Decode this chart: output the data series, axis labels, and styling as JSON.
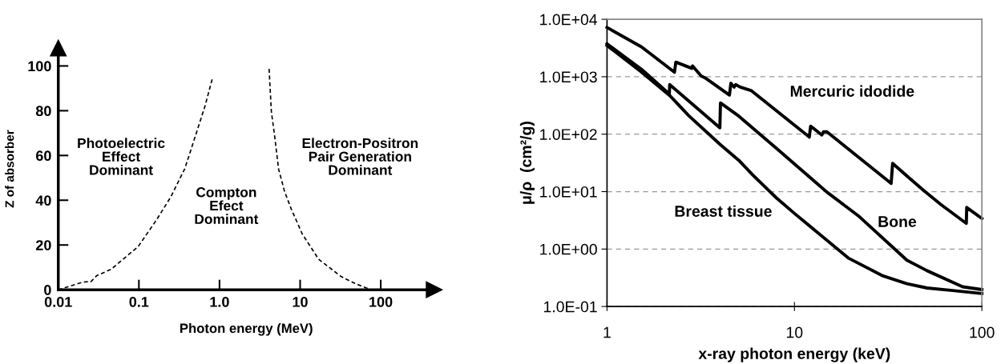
{
  "chart_data": [
    {
      "type": "line",
      "xlabel": "Photon energy (MeV)",
      "ylabel": "Z of absorber",
      "log": "x",
      "line_style": "dashed",
      "marker": "none",
      "grid": false,
      "legend": false,
      "xlim": [
        0.01,
        460
      ],
      "ylim": [
        0,
        108
      ],
      "xticks": [
        0.01,
        0.1,
        {
          "value": 1,
          "label": "1.0"
        },
        10,
        100
      ],
      "yticks": [
        0,
        20,
        40,
        60,
        80,
        100
      ],
      "series": [
        {
          "color": "#000000",
          "x": [
            0.01,
            0.02,
            0.0255,
            0.03,
            0.045,
            0.098,
            0.166,
            0.248,
            0.37,
            0.47,
            0.66,
            0.81
          ],
          "values": [
            0,
            3.4,
            3.7,
            6.3,
            9.1,
            19.3,
            31.3,
            41.4,
            54,
            65.5,
            82,
            94
          ]
        },
        {
          "color": "#000000",
          "x": [
            4.12,
            4.4,
            4.8,
            5.4,
            6.4,
            7.7,
            10.6,
            17,
            32,
            48,
            72
          ],
          "values": [
            98.7,
            79.5,
            69.5,
            54,
            44,
            36.4,
            25,
            13.6,
            6,
            2.8,
            0.3
          ]
        }
      ],
      "annotations": [
        "Photoelectric\nEffect\nDominant",
        "Compton\nEfect\nDominant",
        "Electron-Positron\nPair Generation\nDominant"
      ]
    },
    {
      "type": "line",
      "xlabel": "x-ray photon energy (keV)",
      "ylabel": "μ/ρ  (cm²/g)",
      "log": "xy",
      "line_style": "solid",
      "marker": "none",
      "grid": "y",
      "legend": false,
      "xlim": [
        1,
        100
      ],
      "ylim": [
        0.1,
        10000
      ],
      "xticks": [
        1,
        10,
        100
      ],
      "yticks": [
        {
          "value": 0.1,
          "label": "1.0E-01"
        },
        {
          "value": 1,
          "label": "1.0E+00"
        },
        {
          "value": 10,
          "label": "1.0E+01"
        },
        {
          "value": 100,
          "label": "1.0E+02"
        },
        {
          "value": 1000,
          "label": "1.0E+03"
        },
        {
          "value": 10000,
          "label": "1.0E+04"
        }
      ],
      "series": [
        {
          "name": "Mercuric idodide",
          "color": "#000000",
          "x": [
            1,
            1.53,
            2.29,
            2.33,
            2.83,
            2.86,
            3.18,
            3.33,
            4.5,
            4.58,
            4.76,
            4.86,
            5.14,
            5.9,
            12.0,
            12.2,
            14.0,
            14.3,
            14.9,
            32.8,
            33.4,
            40.4,
            49,
            60.7,
            82.6,
            83,
            100
          ],
          "values": [
            7200,
            3300,
            1200,
            1800,
            1400,
            1540,
            1030,
            960,
            480,
            770,
            660,
            730,
            660,
            570,
            89,
            138,
            97,
            110,
            110,
            13.9,
            31,
            18,
            10.4,
            5.9,
            2.8,
            5.3,
            3.4
          ]
        },
        {
          "name": "Bone",
          "color": "#000000",
          "x": [
            1,
            1.53,
            2.15,
            2.16,
            4.0,
            4.03,
            5.05,
            8.0,
            14.9,
            21.9,
            39.8,
            51,
            79,
            100
          ],
          "values": [
            3750,
            1340,
            500,
            730,
            129,
            350,
            206,
            57,
            9.8,
            3.8,
            0.64,
            0.42,
            0.22,
            0.197
          ]
        },
        {
          "name": "Breast tissue",
          "color": "#000000",
          "x": [
            1,
            1.53,
            2.16,
            2.73,
            4.0,
            5.05,
            6.0,
            8.0,
            10.1,
            19.5,
            29.7,
            39.8,
            51,
            69.8,
            100
          ],
          "values": [
            3500,
            1200,
            470,
            210,
            67,
            35,
            19.4,
            7.8,
            4.06,
            0.69,
            0.34,
            0.25,
            0.21,
            0.19,
            0.168
          ]
        }
      ]
    }
  ]
}
